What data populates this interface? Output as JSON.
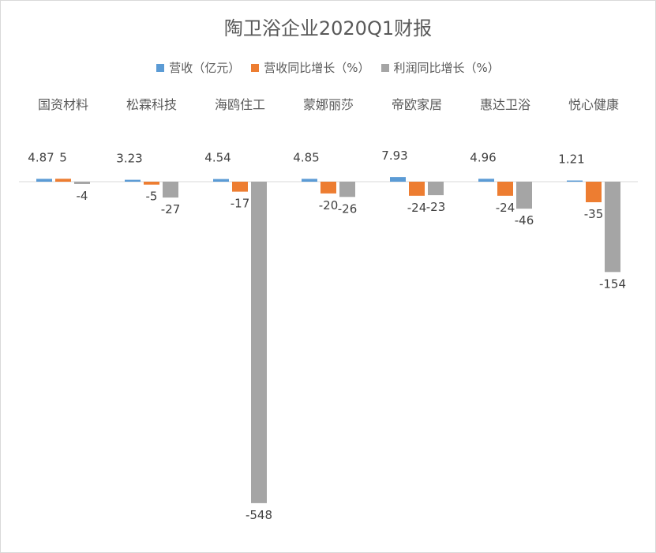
{
  "chart_data": {
    "type": "bar",
    "title": "陶卫浴企业2020Q1财报",
    "categories": [
      "国资材料",
      "松霖科技",
      "海鸥住工",
      "蒙娜丽莎",
      "帝欧家居",
      "惠达卫浴",
      "悦心健康"
    ],
    "series": [
      {
        "name": "营收（亿元）",
        "color": "#5b9bd5",
        "values": [
          4.87,
          3.23,
          4.54,
          4.85,
          7.93,
          4.96,
          1.21
        ]
      },
      {
        "name": "营收同比增长（%）",
        "color": "#ed7d31",
        "values": [
          5,
          -5,
          -17,
          -20,
          -24,
          -24,
          -35
        ]
      },
      {
        "name": "利润同比增长（%）",
        "color": "#a5a5a5",
        "values": [
          -4,
          -27,
          -548,
          -26,
          -23,
          -46,
          -154
        ]
      }
    ],
    "legend_position": "top",
    "category_labels_position": "top",
    "grid": false
  }
}
